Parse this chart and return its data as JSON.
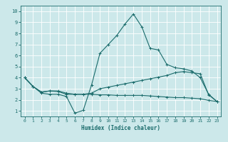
{
  "xlabel": "Humidex (Indice chaleur)",
  "bg_color": "#cce8ea",
  "grid_color": "#ffffff",
  "line_color": "#1a6b6b",
  "xlim": [
    -0.5,
    23.5
  ],
  "ylim": [
    0.5,
    10.5
  ],
  "xticks": [
    0,
    1,
    2,
    3,
    4,
    5,
    6,
    7,
    8,
    9,
    10,
    11,
    12,
    13,
    14,
    15,
    16,
    17,
    18,
    19,
    20,
    21,
    22,
    23
  ],
  "yticks": [
    1,
    2,
    3,
    4,
    5,
    6,
    7,
    8,
    9,
    10
  ],
  "line1_x": [
    0,
    1,
    2,
    3,
    4,
    5,
    6,
    7,
    8,
    9,
    10,
    11,
    12,
    13,
    14,
    15,
    16,
    17,
    18,
    19,
    20,
    21,
    22,
    23
  ],
  "line1_y": [
    4.0,
    3.2,
    2.6,
    2.5,
    2.5,
    2.3,
    0.8,
    1.05,
    3.35,
    6.2,
    7.0,
    7.8,
    8.85,
    9.75,
    8.6,
    6.65,
    6.5,
    5.2,
    4.9,
    4.8,
    4.6,
    4.0,
    2.5,
    1.85
  ],
  "line2_x": [
    0,
    1,
    2,
    3,
    4,
    5,
    6,
    7,
    8,
    9,
    10,
    11,
    12,
    13,
    14,
    15,
    16,
    17,
    18,
    19,
    20,
    21,
    22,
    23
  ],
  "line2_y": [
    4.0,
    3.2,
    2.7,
    2.8,
    2.8,
    2.6,
    2.5,
    2.5,
    2.6,
    3.0,
    3.15,
    3.3,
    3.45,
    3.6,
    3.75,
    3.9,
    4.05,
    4.2,
    4.45,
    4.55,
    4.45,
    4.35,
    2.45,
    1.85
  ],
  "line3_x": [
    0,
    1,
    2,
    3,
    4,
    5,
    6,
    7,
    8,
    9,
    10,
    11,
    12,
    13,
    14,
    15,
    16,
    17,
    18,
    19,
    20,
    21,
    22,
    23
  ],
  "line3_y": [
    4.0,
    3.2,
    2.7,
    2.8,
    2.75,
    2.5,
    2.5,
    2.5,
    2.5,
    2.45,
    2.45,
    2.4,
    2.4,
    2.4,
    2.4,
    2.35,
    2.3,
    2.25,
    2.2,
    2.2,
    2.15,
    2.1,
    1.95,
    1.85
  ]
}
